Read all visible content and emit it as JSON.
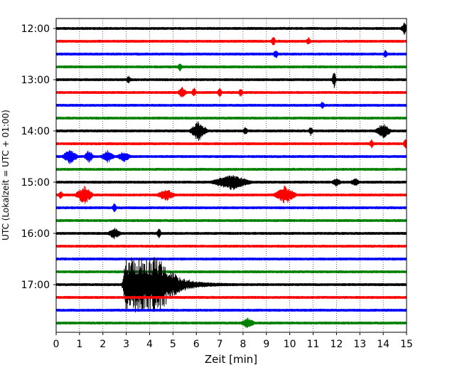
{
  "chart_data": {
    "type": "line",
    "title": "",
    "xlabel": "Zeit  [min]",
    "ylabel": "UTC (Lokalzeit = UTC + 01:00)",
    "xlim": [
      0,
      15
    ],
    "x_ticks": [
      "0",
      "1",
      "2",
      "3",
      "4",
      "5",
      "6",
      "7",
      "8",
      "9",
      "10",
      "11",
      "12",
      "13",
      "14",
      "15"
    ],
    "y_ticks": [
      "12:00",
      "13:00",
      "14:00",
      "15:00",
      "16:00",
      "17:00"
    ],
    "grid": "vertical dotted",
    "trace_interval_min": 15,
    "series_colors": [
      "#000000",
      "#ff0000",
      "#0000ff",
      "#008000"
    ],
    "traces": [
      {
        "start": "12:00",
        "color": "#000000",
        "events": [
          {
            "t": 14.9,
            "amp": 0.35,
            "dur": 0.15
          }
        ]
      },
      {
        "start": "12:15",
        "color": "#ff0000",
        "events": [
          {
            "t": 9.3,
            "amp": 0.3,
            "dur": 0.1
          },
          {
            "t": 10.8,
            "amp": 0.2,
            "dur": 0.1
          }
        ]
      },
      {
        "start": "12:30",
        "color": "#0000ff",
        "events": [
          {
            "t": 9.4,
            "amp": 0.3,
            "dur": 0.1
          },
          {
            "t": 14.1,
            "amp": 0.25,
            "dur": 0.1
          }
        ]
      },
      {
        "start": "12:45",
        "color": "#008000",
        "events": [
          {
            "t": 5.3,
            "amp": 0.25,
            "dur": 0.1
          }
        ]
      },
      {
        "start": "13:00",
        "color": "#000000",
        "events": [
          {
            "t": 11.9,
            "amp": 0.5,
            "dur": 0.1
          },
          {
            "t": 3.1,
            "amp": 0.2,
            "dur": 0.1
          }
        ]
      },
      {
        "start": "13:15",
        "color": "#ff0000",
        "events": [
          {
            "t": 5.4,
            "amp": 0.3,
            "dur": 0.2
          },
          {
            "t": 5.9,
            "amp": 0.3,
            "dur": 0.1
          },
          {
            "t": 7.0,
            "amp": 0.3,
            "dur": 0.1
          },
          {
            "t": 7.9,
            "amp": 0.25,
            "dur": 0.1
          }
        ]
      },
      {
        "start": "13:30",
        "color": "#0000ff",
        "events": [
          {
            "t": 11.4,
            "amp": 0.2,
            "dur": 0.1
          }
        ]
      },
      {
        "start": "13:45",
        "color": "#008000",
        "events": []
      },
      {
        "start": "14:00",
        "color": "#000000",
        "events": [
          {
            "t": 6.1,
            "amp": 0.6,
            "dur": 0.4
          },
          {
            "t": 14.0,
            "amp": 0.45,
            "dur": 0.35
          },
          {
            "t": 8.1,
            "amp": 0.25,
            "dur": 0.1
          },
          {
            "t": 10.9,
            "amp": 0.25,
            "dur": 0.1
          }
        ]
      },
      {
        "start": "14:15",
        "color": "#ff0000",
        "events": [
          {
            "t": 13.5,
            "amp": 0.25,
            "dur": 0.1
          },
          {
            "t": 14.95,
            "amp": 0.3,
            "dur": 0.1
          }
        ]
      },
      {
        "start": "14:30",
        "color": "#0000ff",
        "events": [
          {
            "t": 0.6,
            "amp": 0.45,
            "dur": 0.35
          },
          {
            "t": 1.4,
            "amp": 0.4,
            "dur": 0.2
          },
          {
            "t": 2.2,
            "amp": 0.35,
            "dur": 0.3
          },
          {
            "t": 2.9,
            "amp": 0.3,
            "dur": 0.3
          }
        ]
      },
      {
        "start": "14:45",
        "color": "#008000",
        "events": []
      },
      {
        "start": "15:00",
        "color": "#000000",
        "events": [
          {
            "t": 7.5,
            "amp": 0.45,
            "dur": 0.9
          },
          {
            "t": 12.0,
            "amp": 0.25,
            "dur": 0.2
          },
          {
            "t": 12.8,
            "amp": 0.2,
            "dur": 0.2
          }
        ]
      },
      {
        "start": "15:15",
        "color": "#ff0000",
        "events": [
          {
            "t": 0.2,
            "amp": 0.25,
            "dur": 0.1
          },
          {
            "t": 1.2,
            "amp": 0.55,
            "dur": 0.4
          },
          {
            "t": 4.7,
            "amp": 0.35,
            "dur": 0.4
          },
          {
            "t": 9.8,
            "amp": 0.55,
            "dur": 0.5
          }
        ]
      },
      {
        "start": "15:30",
        "color": "#0000ff",
        "events": [
          {
            "t": 2.5,
            "amp": 0.35,
            "dur": 0.1
          }
        ]
      },
      {
        "start": "15:45",
        "color": "#008000",
        "events": []
      },
      {
        "start": "16:00",
        "color": "#000000",
        "events": [
          {
            "t": 2.5,
            "amp": 0.3,
            "dur": 0.3
          },
          {
            "t": 4.4,
            "amp": 0.3,
            "dur": 0.1
          }
        ]
      },
      {
        "start": "16:15",
        "color": "#ff0000",
        "events": []
      },
      {
        "start": "16:30",
        "color": "#0000ff",
        "events": []
      },
      {
        "start": "16:45",
        "color": "#008000",
        "events": []
      },
      {
        "start": "17:00",
        "color": "#000000",
        "events": [
          {
            "t": 3.0,
            "amp": 1.6,
            "dur": 3.0,
            "quake": true
          }
        ]
      },
      {
        "start": "17:15",
        "color": "#ff0000",
        "events": []
      },
      {
        "start": "17:30",
        "color": "#0000ff",
        "events": []
      },
      {
        "start": "17:45",
        "color": "#008000",
        "events": [
          {
            "t": 8.2,
            "amp": 0.3,
            "dur": 0.3
          }
        ]
      }
    ]
  }
}
